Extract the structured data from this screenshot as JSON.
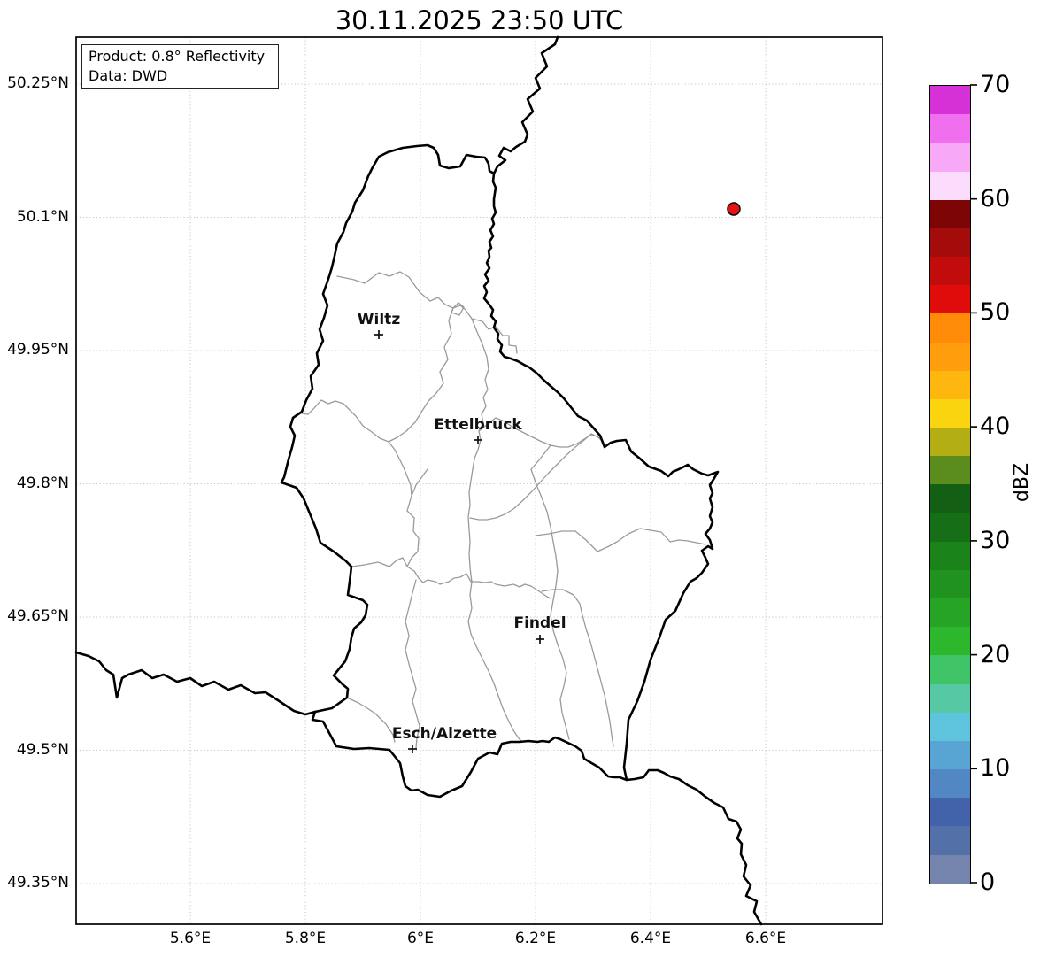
{
  "title": "30.11.2025 23:50 UTC",
  "info_box": {
    "product_line": "Product: 0.8° Reflectivity",
    "data_line": "Data: DWD"
  },
  "axes": {
    "x_ticks": [
      "5.6°E",
      "5.8°E",
      "6°E",
      "6.2°E",
      "6.4°E",
      "6.6°E"
    ],
    "y_ticks": [
      "50.25°N",
      "50.1°N",
      "49.95°N",
      "49.8°N",
      "49.65°N",
      "49.5°N",
      "49.35°N"
    ]
  },
  "map": {
    "extent": {
      "lon_min_label": "5.6°E",
      "lon_max_label": "6.6°E",
      "lat_min_label": "49.35°N",
      "lat_max_label": "50.25°N"
    },
    "cities": [
      {
        "name": "Wiltz"
      },
      {
        "name": "Ettelbruck"
      },
      {
        "name": "Findel"
      },
      {
        "name": "Esch/Alzette"
      }
    ],
    "radar_marker_color": "#e51414",
    "country_border_color": "#000000",
    "district_border_color": "#9a9a9a",
    "grid_color": "#c6c6c6"
  },
  "colorbar": {
    "label": "dBZ",
    "tick_labels": [
      "70",
      "60",
      "50",
      "40",
      "30",
      "20",
      "10",
      "0"
    ],
    "min": 0,
    "max": 70,
    "step_dbz": 2.5,
    "colors_top_to_bottom": [
      "#d631d6",
      "#ef6fef",
      "#f7a8f7",
      "#fcdcfc",
      "#7d0505",
      "#a40c0c",
      "#c20b0b",
      "#e00c0c",
      "#ff8b09",
      "#ff9d0c",
      "#fdb70f",
      "#fbd410",
      "#b2ae14",
      "#5a8c1e",
      "#135f13",
      "#166f16",
      "#1a831a",
      "#209220",
      "#26a426",
      "#2cb72c",
      "#3fc468",
      "#56c9a4",
      "#5ec3dc",
      "#58a5d3",
      "#5187c2",
      "#4263a9",
      "#5370a9",
      "#7584ac"
    ]
  }
}
